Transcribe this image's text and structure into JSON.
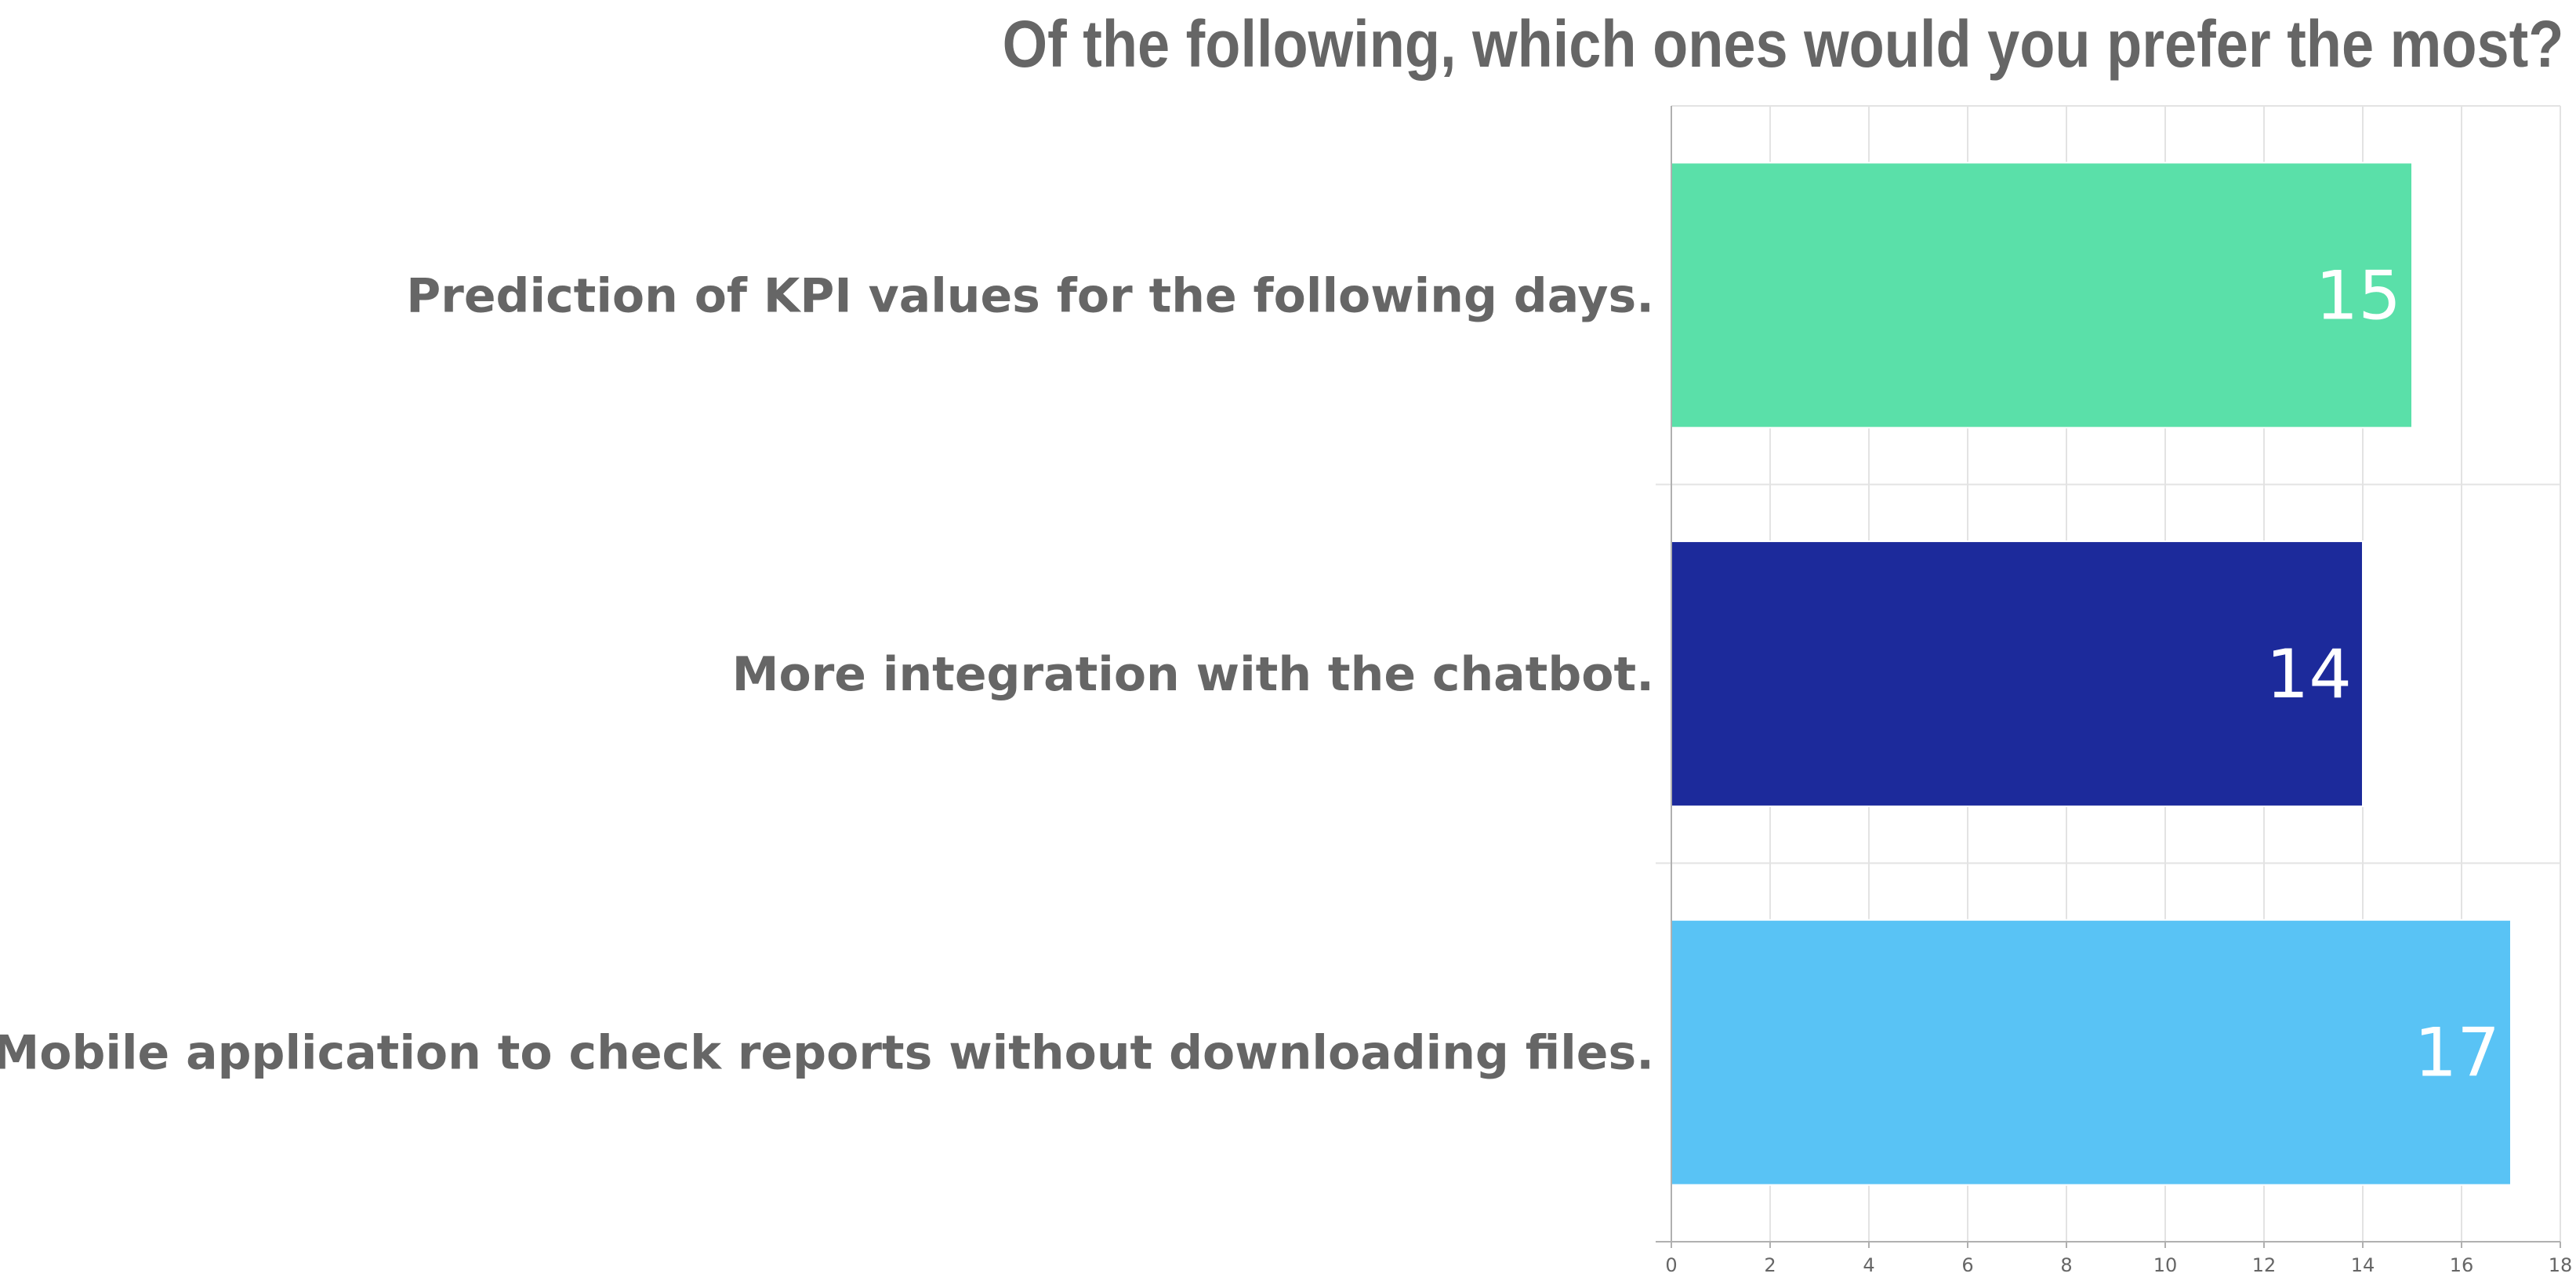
{
  "chart_data": {
    "type": "bar",
    "orientation": "horizontal",
    "title": "Of the following, which ones would you prefer the most?",
    "categories": [
      "Prediction of KPI values for the following days.",
      "More integration with the chatbot.",
      "Mobile application to check reports without downloading files."
    ],
    "values": [
      15,
      14,
      17
    ],
    "colors": [
      "#5ae0a9",
      "#1c2a9b",
      "#59c3f5"
    ],
    "xlim": [
      0,
      18
    ],
    "xticks": [
      0,
      2,
      4,
      6,
      8,
      10,
      12,
      14,
      16,
      18
    ],
    "grid": true,
    "legend": "none",
    "xlabel": "",
    "ylabel": ""
  }
}
